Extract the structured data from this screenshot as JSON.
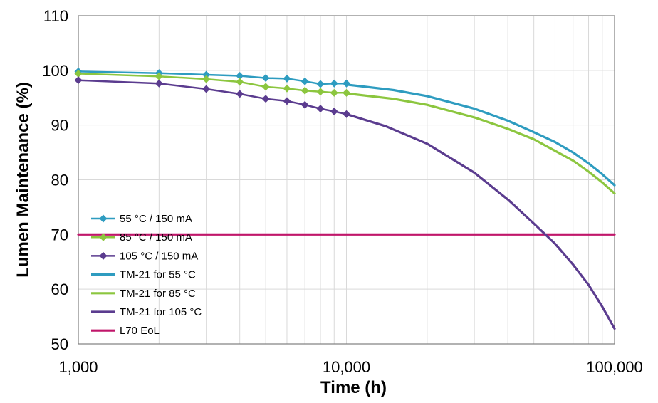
{
  "chart_data": {
    "type": "line",
    "xlabel": "Time (h)",
    "ylabel": "Lumen Maintenance (%)",
    "x_scale": "log",
    "xlim": [
      1000,
      100000
    ],
    "ylim": [
      50,
      110
    ],
    "x_ticks": [
      1000,
      10000,
      100000
    ],
    "x_tick_labels": [
      "1,000",
      "10,000",
      "100,000"
    ],
    "y_ticks": [
      50,
      60,
      70,
      80,
      90,
      100,
      110
    ],
    "y_tick_labels": [
      "50",
      "60",
      "70",
      "80",
      "90",
      "100",
      "110"
    ],
    "grid": true,
    "legend_position": "bottom-left",
    "series": [
      {
        "name": "55 °C / 150 mA",
        "kind": "measured",
        "color": "#2E9CC0",
        "marker": "diamond",
        "x": [
          1000,
          2000,
          3000,
          4000,
          5000,
          6000,
          7000,
          8000,
          9000,
          10000
        ],
        "y": [
          99.8,
          99.5,
          99.2,
          99.0,
          98.6,
          98.5,
          98.0,
          97.5,
          97.6,
          97.6
        ]
      },
      {
        "name": "85 °C / 150 mA",
        "kind": "measured",
        "color": "#8CC63F",
        "marker": "diamond",
        "x": [
          1000,
          2000,
          3000,
          4000,
          5000,
          6000,
          7000,
          8000,
          9000,
          10000
        ],
        "y": [
          99.4,
          98.9,
          98.4,
          97.9,
          97.0,
          96.7,
          96.3,
          96.1,
          95.9,
          95.9
        ]
      },
      {
        "name": "105 °C / 150 mA",
        "kind": "measured",
        "color": "#5B3C8F",
        "marker": "diamond",
        "x": [
          1000,
          2000,
          3000,
          4000,
          5000,
          6000,
          7000,
          8000,
          9000,
          10000
        ],
        "y": [
          98.2,
          97.6,
          96.6,
          95.7,
          94.8,
          94.4,
          93.7,
          93.0,
          92.5,
          92.0
        ]
      },
      {
        "name": "TM-21 for 55 °C",
        "kind": "projection",
        "color": "#2E9CC0",
        "x": [
          10000,
          15000,
          20000,
          30000,
          40000,
          50000,
          60000,
          70000,
          80000,
          90000,
          100000
        ],
        "y": [
          97.4,
          96.4,
          95.3,
          93.0,
          90.8,
          88.7,
          86.9,
          85.0,
          83.0,
          81.0,
          79.0
        ]
      },
      {
        "name": "TM-21 for 85 °C",
        "kind": "projection",
        "color": "#8CC63F",
        "x": [
          10000,
          15000,
          20000,
          30000,
          40000,
          50000,
          60000,
          70000,
          80000,
          90000,
          100000
        ],
        "y": [
          95.8,
          94.8,
          93.7,
          91.4,
          89.3,
          87.4,
          85.3,
          83.5,
          81.5,
          79.5,
          77.5
        ]
      },
      {
        "name": "TM-21 for 105 °C",
        "kind": "projection",
        "color": "#5B3C8F",
        "x": [
          10000,
          14000,
          20000,
          30000,
          40000,
          50000,
          60000,
          70000,
          80000,
          90000,
          100000
        ],
        "y": [
          92.0,
          89.8,
          86.6,
          81.3,
          76.4,
          72.0,
          68.3,
          64.5,
          60.8,
          56.8,
          52.8
        ]
      },
      {
        "name": "L70 EoL",
        "kind": "threshold",
        "color": "#C0166A",
        "x": [
          1000,
          100000
        ],
        "y": [
          70,
          70
        ]
      }
    ]
  }
}
